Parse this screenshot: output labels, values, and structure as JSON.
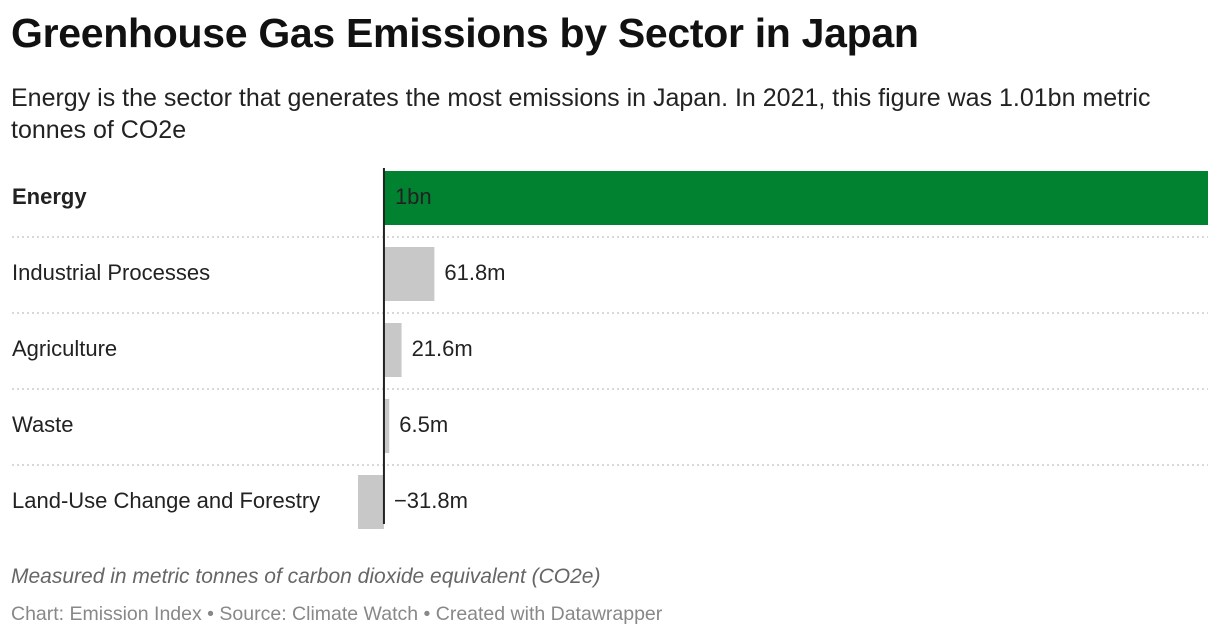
{
  "chart_data": {
    "type": "bar",
    "orientation": "horizontal",
    "title": "Greenhouse Gas Emissions by Sector in Japan",
    "subtitle": "Energy is the sector that generates the most emissions in Japan. In 2021, this figure was 1.01bn metric tonnes of CO2e",
    "categories": [
      "Energy",
      "Industrial Processes",
      "Agriculture",
      "Waste",
      "Land-Use Change and Forestry"
    ],
    "values": [
      1010000000,
      61800000,
      21600000,
      6500000,
      -31800000
    ],
    "value_labels": [
      "1bn",
      "61.8m",
      "21.6m",
      "6.5m",
      "−31.8m"
    ],
    "color": "#c8c8c8",
    "highlight_color": "#008230",
    "highlighted": [
      true,
      false,
      false,
      false,
      false
    ],
    "notes": "Measured in metric tonnes of carbon dioxide equivalent (CO2e)",
    "source": "Chart: Emission Index • Source: Climate Watch • Created with Datawrapper"
  }
}
